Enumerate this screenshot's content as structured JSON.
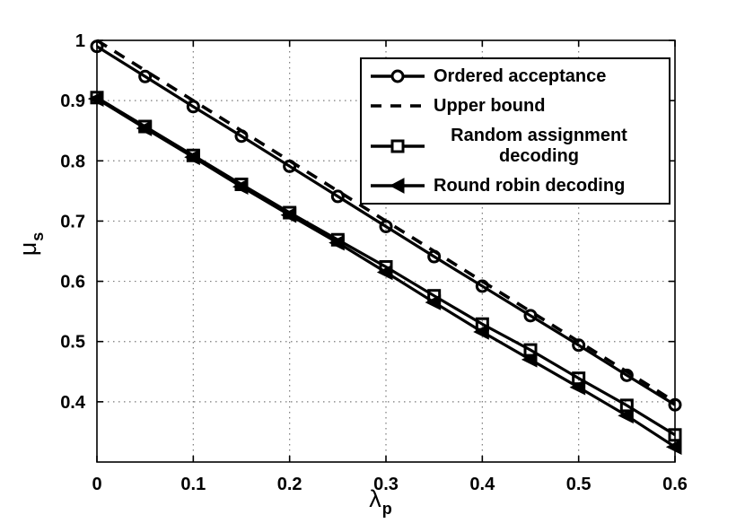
{
  "figure": {
    "background": "#ffffff",
    "foreground": "#000000",
    "grid_color": "#7a7a7a"
  },
  "chart_data": {
    "type": "line",
    "title": "",
    "xlabel": {
      "base": "λ",
      "sub": "p"
    },
    "ylabel": {
      "base": "μ",
      "sub": "s"
    },
    "xlim": [
      0,
      0.6
    ],
    "ylim": [
      0.3,
      1.0
    ],
    "grid": true,
    "legend_position": "top-right",
    "xticks": {
      "values": [
        0,
        0.1,
        0.2,
        0.3,
        0.4,
        0.5,
        0.6
      ],
      "labels": [
        "0",
        "0.1",
        "0.2",
        "0.3",
        "0.4",
        "0.5",
        "0.6"
      ]
    },
    "yticks": {
      "values": [
        0.4,
        0.5,
        0.6,
        0.7,
        0.8,
        0.9,
        1.0
      ],
      "labels": [
        "0.4",
        "0.5",
        "0.6",
        "0.7",
        "0.8",
        "0.9",
        "1"
      ]
    },
    "x": [
      0,
      0.05,
      0.1,
      0.15,
      0.2,
      0.25,
      0.3,
      0.35,
      0.4,
      0.45,
      0.5,
      0.55,
      0.6
    ],
    "series": [
      {
        "name": "Ordered acceptance",
        "marker": "circle",
        "line": "solid",
        "color": "#000000",
        "values": [
          0.99,
          0.94,
          0.89,
          0.841,
          0.791,
          0.741,
          0.691,
          0.641,
          0.592,
          0.543,
          0.494,
          0.444,
          0.395
        ]
      },
      {
        "name": "Upper bound",
        "marker": "none",
        "line": "dashed",
        "color": "#000000",
        "values": [
          1.0,
          0.95,
          0.9,
          0.85,
          0.8,
          0.75,
          0.7,
          0.65,
          0.6,
          0.55,
          0.5,
          0.45,
          0.4
        ]
      },
      {
        "name": "Random assignment decoding",
        "marker": "square",
        "line": "solid",
        "color": "#000000",
        "values": [
          0.905,
          0.857,
          0.809,
          0.761,
          0.714,
          0.669,
          0.624,
          0.576,
          0.529,
          0.486,
          0.439,
          0.394,
          0.345
        ]
      },
      {
        "name": "Round robin decoding",
        "marker": "triangle-left",
        "line": "solid",
        "color": "#000000",
        "values": [
          0.903,
          0.854,
          0.806,
          0.757,
          0.71,
          0.664,
          0.615,
          0.565,
          0.516,
          0.47,
          0.424,
          0.377,
          0.325
        ]
      }
    ]
  }
}
